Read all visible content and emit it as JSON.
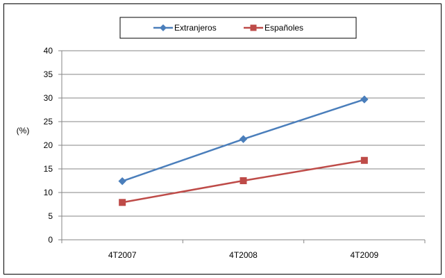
{
  "chart_data": {
    "type": "line",
    "categories": [
      "4T2007",
      "4T2008",
      "4T2009"
    ],
    "series": [
      {
        "name": "Extranjeros",
        "values": [
          12.4,
          21.3,
          29.7
        ],
        "color": "#4a7ebb",
        "marker": "diamond"
      },
      {
        "name": "Españoles",
        "values": [
          7.9,
          12.5,
          16.8
        ],
        "color": "#be4b48",
        "marker": "square"
      }
    ],
    "ylabel": "(%)",
    "ylim": [
      0,
      40
    ],
    "yticks": [
      0,
      5,
      10,
      15,
      20,
      25,
      30,
      35,
      40
    ],
    "grid": true,
    "legend": "top-center"
  }
}
